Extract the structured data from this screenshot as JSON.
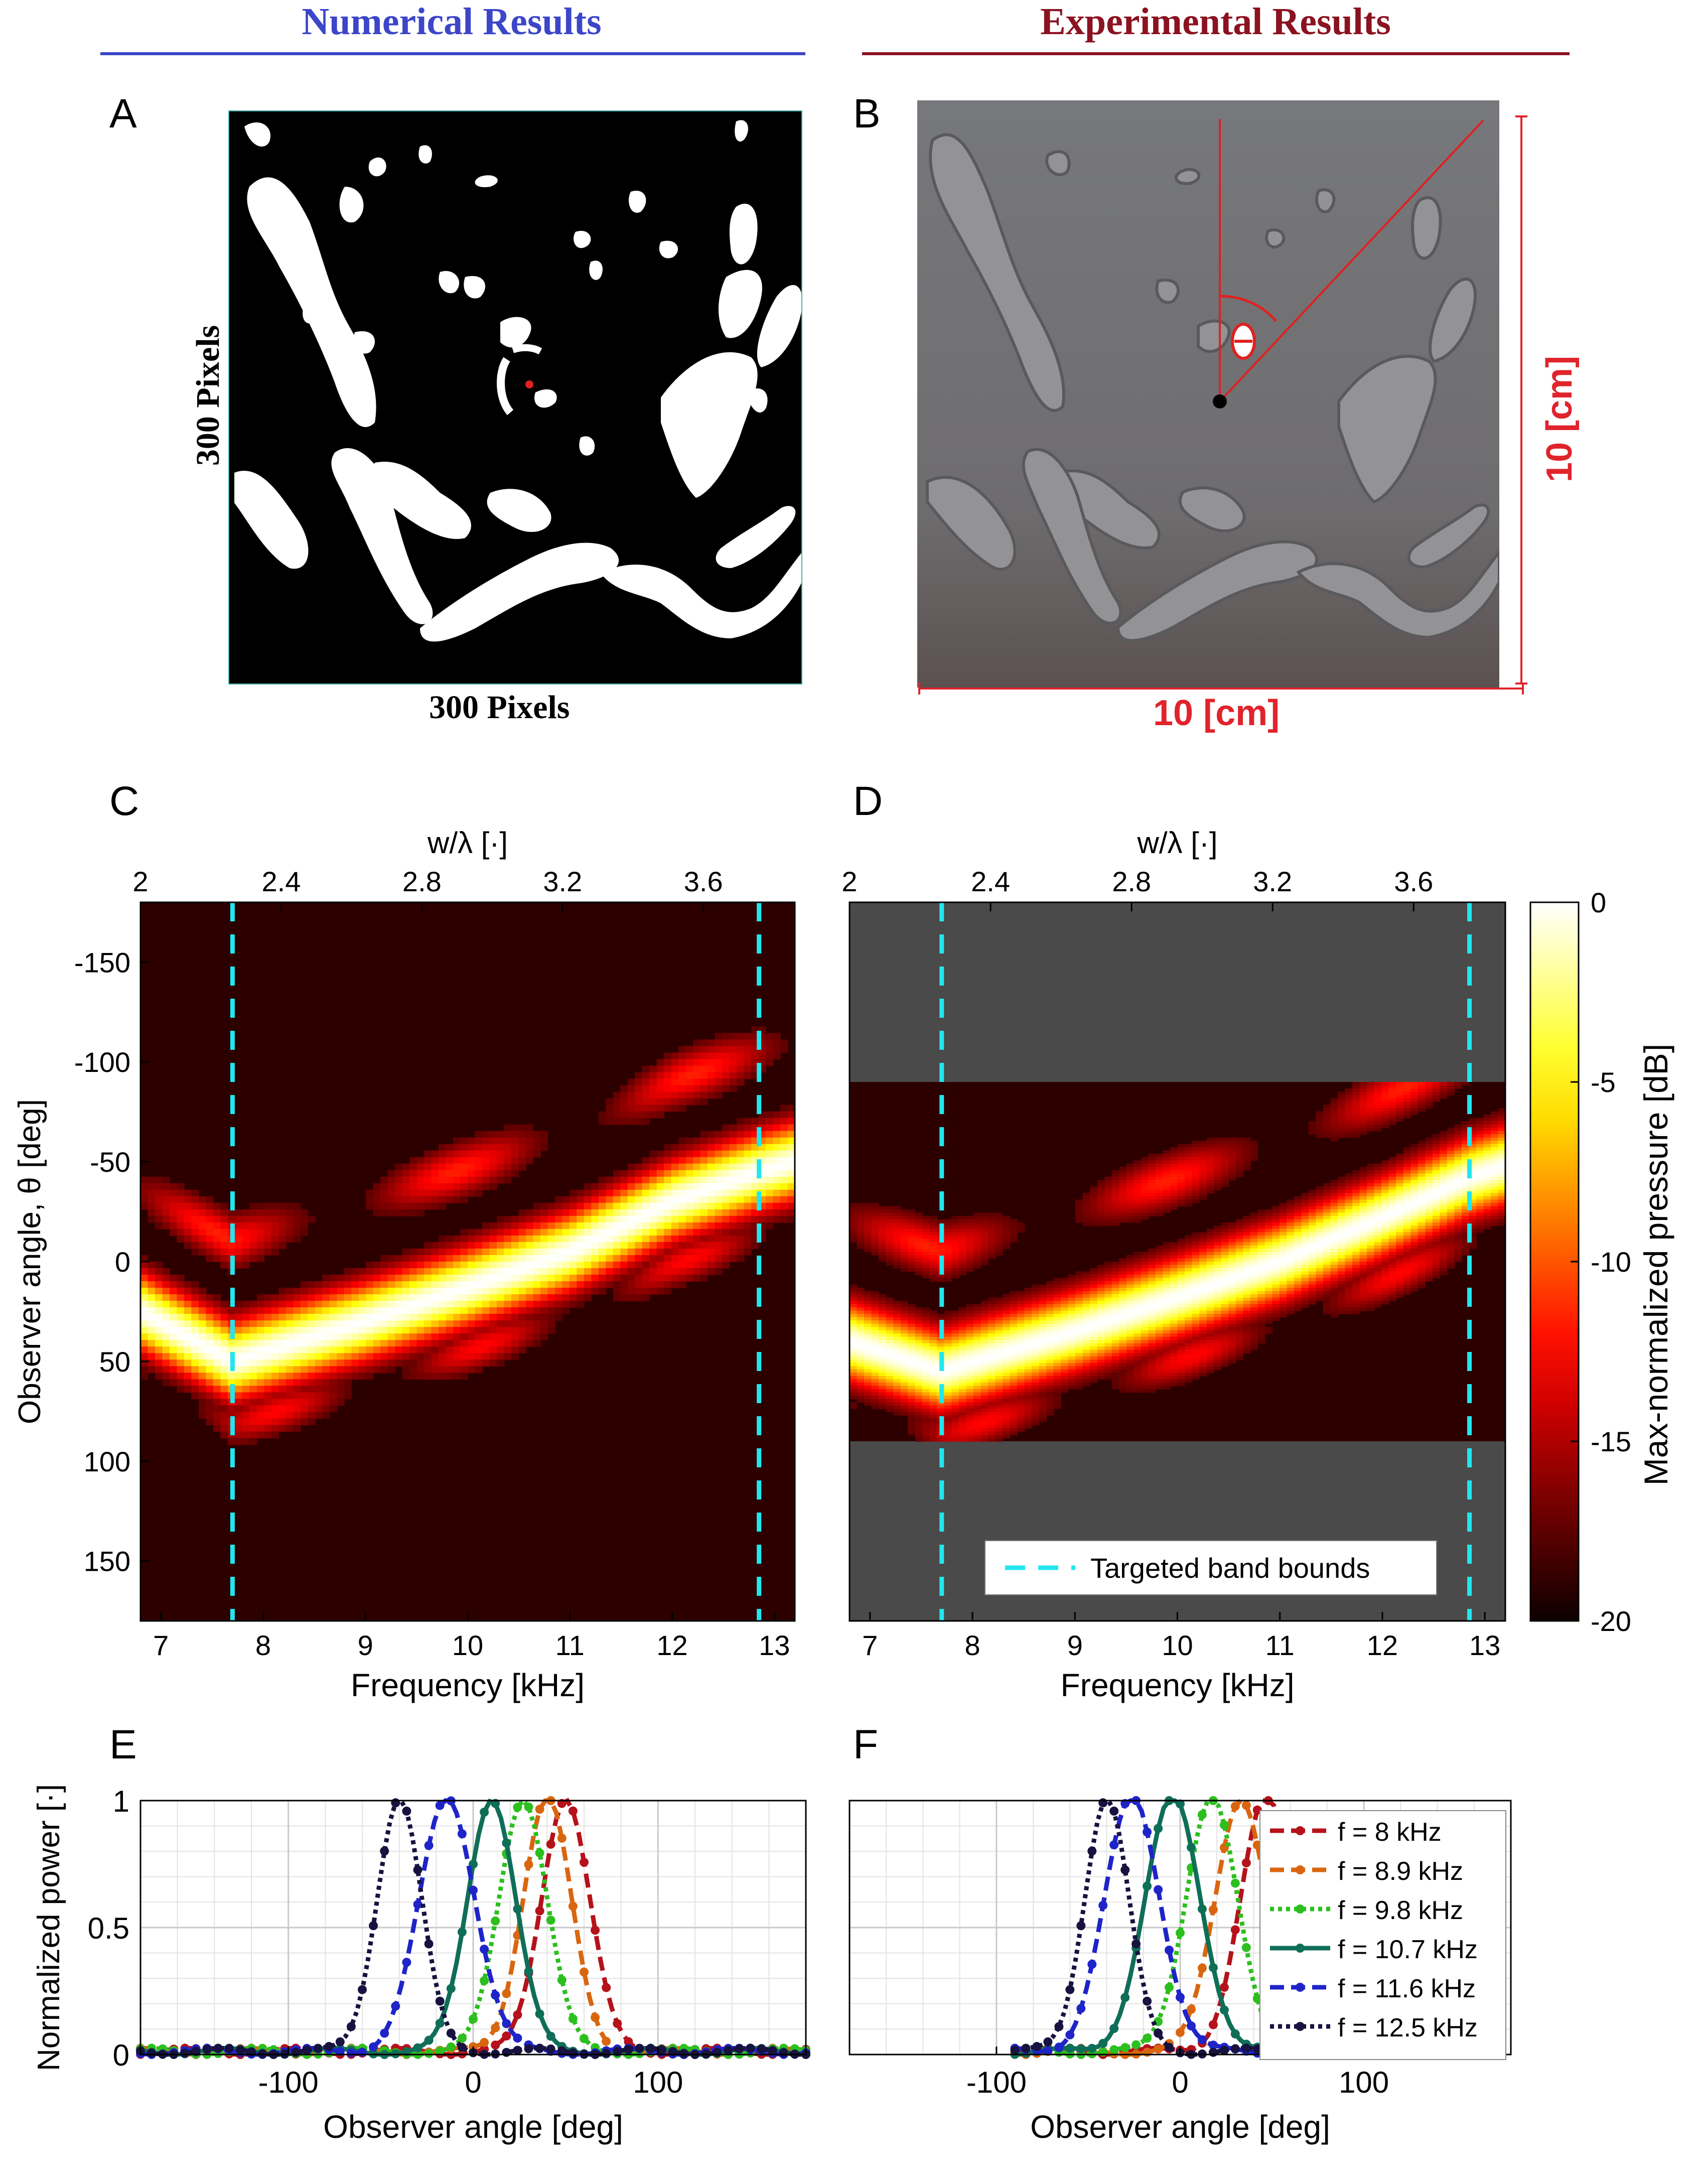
{
  "headers": {
    "numerical": "Numerical Results",
    "experimental": "Experimental Results",
    "numerical_color": "#3c46c8",
    "experimental_color": "#8b1220"
  },
  "panels": {
    "A": {
      "letter": "A",
      "side_label": "300 Pixels",
      "bottom_label": "300 Pixels"
    },
    "B": {
      "letter": "B",
      "height_label": "10 [cm]",
      "width_label": "10 [cm]"
    },
    "C": {
      "letter": "C"
    },
    "D": {
      "letter": "D"
    },
    "E": {
      "letter": "E"
    },
    "F": {
      "letter": "F"
    }
  },
  "colorbar": {
    "label": "Max-normalized pressure [dB]",
    "ticks": [
      "0",
      "-5",
      "-10",
      "-15",
      "-20"
    ],
    "range": [
      -20,
      0
    ]
  },
  "chart_data": [
    {
      "panel": "C",
      "type": "heatmap",
      "xlabel": "Frequency [kHz]",
      "ylabel": "Observer angle, θ [deg]",
      "top_xlabel": "w/λ [·]",
      "xlim": [
        6.8,
        13.2
      ],
      "ylim": [
        -180,
        180
      ],
      "x_ticks": [
        "7",
        "8",
        "9",
        "10",
        "11",
        "12",
        "13"
      ],
      "y_ticks": [
        "-150",
        "-100",
        "-50",
        "0",
        "50",
        "100",
        "150"
      ],
      "top_ticks": [
        "2",
        "2.4",
        "2.8",
        "3.2",
        "3.6"
      ],
      "band_bounds_khz": [
        7.7,
        12.85
      ],
      "ridge": {
        "freq_khz": [
          6.8,
          7.7,
          9,
          10,
          11,
          12,
          12.85,
          13.2
        ],
        "angle_deg": [
          25,
          50,
          30,
          13,
          -5,
          -30,
          -45,
          -50
        ]
      }
    },
    {
      "panel": "D",
      "type": "heatmap",
      "xlabel": "Frequency [kHz]",
      "top_xlabel": "w/λ [·]",
      "xlim": [
        6.8,
        13.2
      ],
      "ylim": [
        -180,
        180
      ],
      "x_ticks": [
        "7",
        "8",
        "9",
        "10",
        "11",
        "12",
        "13"
      ],
      "top_ticks": [
        "2",
        "2.4",
        "2.8",
        "3.2",
        "3.6"
      ],
      "measured_angle_range": [
        -90,
        90
      ],
      "band_bounds_khz": [
        7.7,
        12.85
      ],
      "legend": [
        "Targeted band bounds"
      ],
      "ridge": {
        "freq_khz": [
          6.8,
          7.7,
          9,
          10,
          11,
          12,
          12.85,
          13.2
        ],
        "angle_deg": [
          40,
          55,
          35,
          18,
          0,
          -22,
          -42,
          -48
        ]
      }
    },
    {
      "panel": "E",
      "type": "line",
      "xlabel": "Observer angle [deg]",
      "ylabel": "Normalized power [·]",
      "xlim": [
        -180,
        180
      ],
      "ylim": [
        0,
        1
      ],
      "x_ticks": [
        "-100",
        "0",
        "100"
      ],
      "y_ticks": [
        "0",
        "0.5",
        "1"
      ],
      "series": [
        {
          "name": "f = 8 kHz",
          "peak_deg": 50,
          "width_deg": 13,
          "color": "#b5121b",
          "dash": "28 14"
        },
        {
          "name": "f = 8.9 kHz",
          "peak_deg": 40,
          "width_deg": 13,
          "color": "#d9660f",
          "dash": "28 14"
        },
        {
          "name": "f = 9.8 kHz",
          "peak_deg": 27,
          "width_deg": 13,
          "color": "#2cbf1e",
          "dash": "8 8"
        },
        {
          "name": "f = 10.7 kHz",
          "peak_deg": 10,
          "width_deg": 13,
          "color": "#0f6e57",
          "dash": ""
        },
        {
          "name": "f = 11.6 kHz",
          "peak_deg": -14,
          "width_deg": 15,
          "color": "#1f24c8",
          "dash": "28 14"
        },
        {
          "name": "f = 12.5 kHz",
          "peak_deg": -40,
          "width_deg": 12,
          "color": "#17123f",
          "dash": "8 8"
        }
      ]
    },
    {
      "panel": "F",
      "type": "line",
      "xlabel": "Observer angle [deg]",
      "xlim": [
        -180,
        180
      ],
      "ylim": [
        0,
        1
      ],
      "x_ticks": [
        "-100",
        "0",
        "100"
      ],
      "measured_range_deg": [
        -90,
        90
      ],
      "series": [
        {
          "name": "f = 8 kHz",
          "peak_deg": 47,
          "width_deg": 14,
          "color": "#b5121b",
          "dash": "28 14"
        },
        {
          "name": "f = 8.9 kHz",
          "peak_deg": 33,
          "width_deg": 14,
          "color": "#d9660f",
          "dash": "28 14"
        },
        {
          "name": "f = 9.8 kHz",
          "peak_deg": 17,
          "width_deg": 14,
          "color": "#2cbf1e",
          "dash": "8 8"
        },
        {
          "name": "f = 10.7 kHz",
          "peak_deg": -4,
          "width_deg": 15,
          "color": "#0f6e57",
          "dash": ""
        },
        {
          "name": "f = 11.6 kHz",
          "peak_deg": -26,
          "width_deg": 15,
          "color": "#1f24c8",
          "dash": "28 14"
        },
        {
          "name": "f = 12.5 kHz",
          "peak_deg": -40,
          "width_deg": 12,
          "color": "#17123f",
          "dash": "8 8"
        }
      ]
    }
  ]
}
